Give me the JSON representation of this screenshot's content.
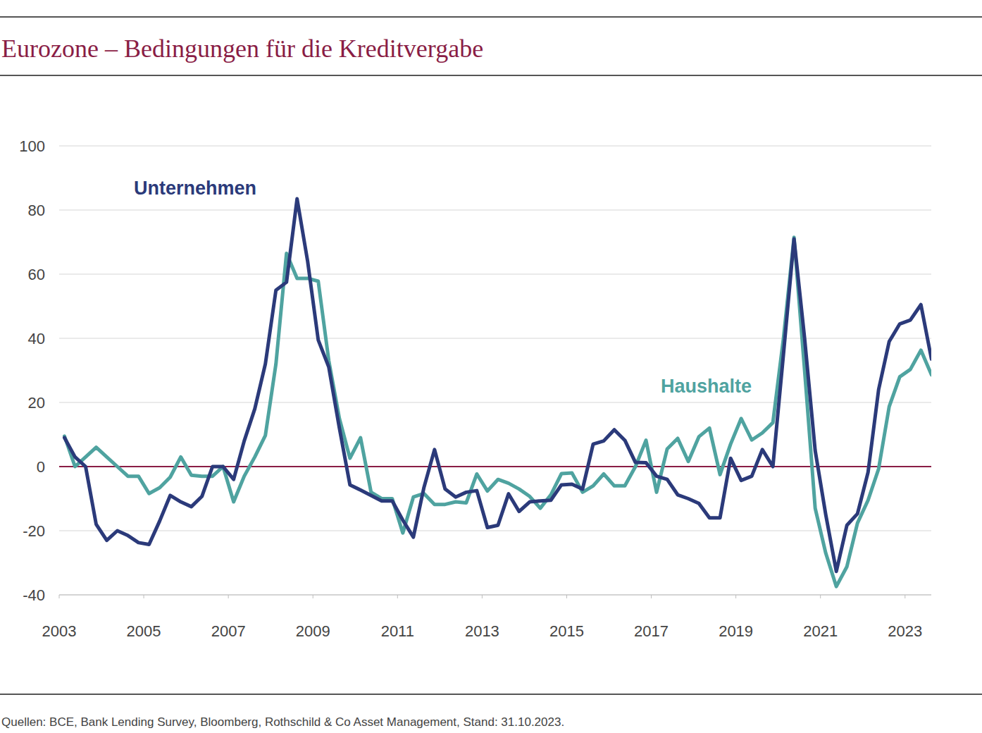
{
  "chart_data": {
    "type": "line",
    "title": "Eurozone – Bedingungen für die Kreditvergabe",
    "source": "Quellen: BCE, Bank Lending Survey, Bloomberg, Rothschild & Co Asset Management, Stand: 31.10.2023.",
    "x": [
      2003.125,
      2003.375,
      2003.625,
      2003.875,
      2004.125,
      2004.375,
      2004.625,
      2004.875,
      2005.125,
      2005.375,
      2005.625,
      2005.875,
      2006.125,
      2006.375,
      2006.625,
      2006.875,
      2007.125,
      2007.375,
      2007.625,
      2007.875,
      2008.125,
      2008.375,
      2008.625,
      2008.875,
      2009.125,
      2009.375,
      2009.625,
      2009.875,
      2010.125,
      2010.375,
      2010.625,
      2010.875,
      2011.125,
      2011.375,
      2011.625,
      2011.875,
      2012.125,
      2012.375,
      2012.625,
      2012.875,
      2013.125,
      2013.375,
      2013.625,
      2013.875,
      2014.125,
      2014.375,
      2014.625,
      2014.875,
      2015.125,
      2015.375,
      2015.625,
      2015.875,
      2016.125,
      2016.375,
      2016.625,
      2016.875,
      2017.125,
      2017.375,
      2017.625,
      2017.875,
      2018.125,
      2018.375,
      2018.625,
      2018.875,
      2019.125,
      2019.375,
      2019.625,
      2019.875,
      2020.125,
      2020.375,
      2020.625,
      2020.875,
      2021.125,
      2021.375,
      2021.625,
      2021.875,
      2022.125,
      2022.375,
      2022.625,
      2022.875,
      2023.125,
      2023.375,
      2023.625
    ],
    "series": [
      {
        "name": "Unternehmen",
        "color": "#2b3a7a",
        "values": [
          9,
          3,
          0,
          -18,
          -23,
          -20,
          -21.5,
          -23.7,
          -24.3,
          -17,
          -9,
          -11,
          -12.5,
          -9.3,
          0,
          0,
          -4,
          8,
          18,
          32,
          55,
          57.5,
          83.5,
          64,
          39.5,
          31,
          12,
          -5.7,
          -7.3,
          -9,
          -10.7,
          -10.7,
          -16.7,
          -22,
          -6.5,
          5.3,
          -7,
          -9.5,
          -8,
          -7.5,
          -19,
          -18.3,
          -8.5,
          -14,
          -11,
          -10.7,
          -10.5,
          -5.7,
          -5.5,
          -7,
          7,
          8,
          11.5,
          8.2,
          1.3,
          1.2,
          -3,
          -4,
          -8.8,
          -10,
          -11.5,
          -16,
          -16,
          2.6,
          -4.3,
          -3,
          5.3,
          0,
          35,
          71,
          40,
          5,
          -15,
          -32.7,
          -18.3,
          -14.7,
          -1.8,
          24,
          39,
          44.5,
          45.7,
          50.5,
          33.5
        ]
      },
      {
        "name": "Haushalte",
        "color": "#4fa3a0",
        "values": [
          9.5,
          0,
          3,
          6,
          3,
          0,
          -3,
          -3,
          -8.4,
          -6.6,
          -3.3,
          3,
          -2.7,
          -3,
          -3,
          0,
          -11,
          -3,
          3,
          9.7,
          32,
          66.5,
          58.7,
          58.7,
          57.8,
          33,
          15,
          2.6,
          9,
          -8,
          -10,
          -10,
          -20.7,
          -9.5,
          -8.4,
          -11.8,
          -11.8,
          -11,
          -11.3,
          -2.3,
          -7.6,
          -4,
          -5.2,
          -7,
          -9.3,
          -13,
          -8.8,
          -2.2,
          -2,
          -8,
          -6,
          -2.3,
          -6,
          -6,
          0,
          8.2,
          -8,
          5.5,
          8.8,
          1.6,
          9.3,
          12,
          -2.5,
          7,
          15,
          8.3,
          10.5,
          13.7,
          40,
          71.5,
          30,
          -13,
          -27,
          -37.4,
          -31.2,
          -17.6,
          -10.5,
          -0.7,
          18.7,
          28,
          30.3,
          36.3,
          28.6
        ]
      }
    ],
    "xlim": [
      2003,
      2023.62
    ],
    "xticks": [
      2003,
      2005,
      2007,
      2009,
      2011,
      2013,
      2015,
      2017,
      2019,
      2021,
      2023
    ],
    "ylim": [
      -40,
      100
    ],
    "yticks": [
      -40,
      -20,
      0,
      20,
      40,
      60,
      80,
      100
    ],
    "grid": true
  }
}
